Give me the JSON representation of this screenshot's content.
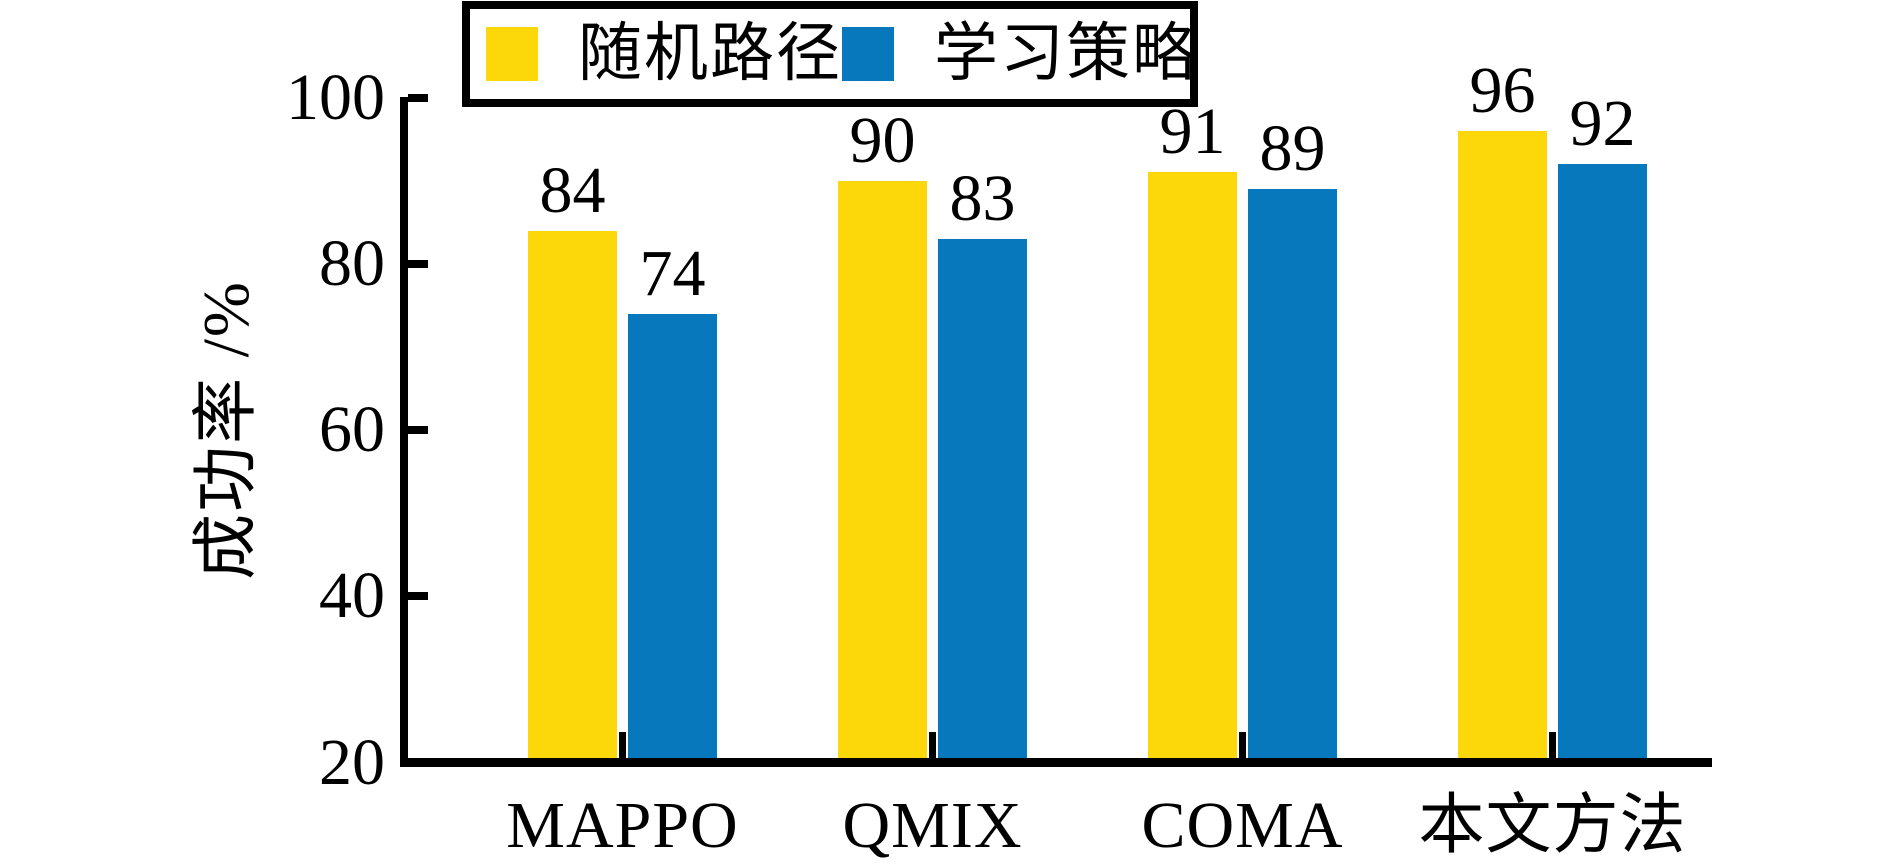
{
  "figure": {
    "background": "#ffffff",
    "text_color": "#000000",
    "axis_color": "#000000"
  },
  "legend": {
    "items": [
      {
        "label": "随机路径",
        "color": "#FCD80B"
      },
      {
        "label": "学习策略",
        "color": "#0878BC"
      }
    ],
    "border_color": "#000000",
    "position": "top"
  },
  "chart_data": {
    "type": "bar",
    "categories": [
      "MAPPO",
      "QMIX",
      "COMA",
      "本文方法"
    ],
    "series": [
      {
        "name": "随机路径",
        "color": "#FCD80B",
        "values": [
          84,
          90,
          91,
          96
        ]
      },
      {
        "name": "学习策略",
        "color": "#0878BC",
        "values": [
          74,
          83,
          89,
          92
        ]
      }
    ],
    "title": "",
    "xlabel": "",
    "ylabel": "成功率 /%",
    "ylim": [
      20,
      100
    ],
    "yticks": [
      20,
      40,
      60,
      80,
      100
    ],
    "bar_value_labels": true,
    "grid": false,
    "legend_position": "top"
  }
}
